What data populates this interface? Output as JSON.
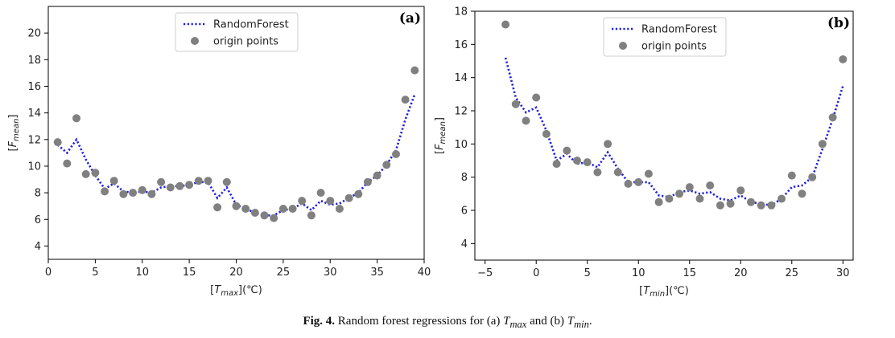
{
  "chart_data": [
    {
      "type": "scatter",
      "panel_tag": "(a)",
      "xlabel_var": "T",
      "xlabel_sub": "max",
      "xlabel_unit": "(℃)",
      "ylabel_var": "F",
      "ylabel_sub": "mean",
      "xlim": [
        0,
        40
      ],
      "ylim": [
        3,
        22
      ],
      "xticks": [
        0,
        5,
        10,
        15,
        20,
        25,
        30,
        35,
        40
      ],
      "yticks": [
        4,
        6,
        8,
        10,
        12,
        14,
        16,
        18,
        20
      ],
      "grid": false,
      "legend_placement": "top-center",
      "series": [
        {
          "name": "RandomForest",
          "style": "dotted-line",
          "color": "#1f1fe0",
          "x": [
            1,
            2,
            3,
            4,
            5,
            6,
            7,
            8,
            9,
            10,
            11,
            12,
            13,
            14,
            15,
            16,
            17,
            18,
            19,
            20,
            21,
            22,
            23,
            24,
            25,
            26,
            27,
            28,
            29,
            30,
            31,
            32,
            33,
            34,
            35,
            36,
            37,
            38,
            39
          ],
          "y": [
            11.6,
            11.0,
            12.0,
            10.5,
            9.3,
            8.3,
            8.7,
            8.1,
            8.0,
            8.1,
            8.0,
            8.4,
            8.5,
            8.5,
            8.6,
            8.8,
            8.8,
            7.6,
            8.4,
            7.1,
            6.8,
            6.5,
            6.3,
            6.3,
            6.7,
            6.8,
            7.2,
            6.7,
            7.4,
            7.1,
            7.2,
            7.6,
            8.0,
            8.8,
            9.3,
            10.1,
            11.2,
            13.5,
            15.4
          ]
        },
        {
          "name": "origin points",
          "style": "markers",
          "color": "#808080",
          "x": [
            1,
            2,
            3,
            4,
            5,
            6,
            7,
            8,
            9,
            10,
            11,
            12,
            13,
            14,
            15,
            16,
            17,
            18,
            19,
            20,
            21,
            22,
            23,
            24,
            25,
            26,
            27,
            28,
            29,
            30,
            31,
            32,
            33,
            34,
            35,
            36,
            37,
            38,
            39
          ],
          "y": [
            11.8,
            10.2,
            13.6,
            9.4,
            9.5,
            8.1,
            8.9,
            7.9,
            8.0,
            8.2,
            7.9,
            8.8,
            8.4,
            8.5,
            8.6,
            8.9,
            8.9,
            6.9,
            8.8,
            7.0,
            6.8,
            6.5,
            6.3,
            6.1,
            6.8,
            6.8,
            7.4,
            6.3,
            8.0,
            7.4,
            6.8,
            7.6,
            7.9,
            8.8,
            9.3,
            10.1,
            10.9,
            15.0,
            17.2
          ]
        }
      ]
    },
    {
      "type": "scatter",
      "panel_tag": "(b)",
      "xlabel_var": "T",
      "xlabel_sub": "min",
      "xlabel_unit": "(℃)",
      "ylabel_var": "F",
      "ylabel_sub": "mean",
      "xlim": [
        -6,
        31
      ],
      "ylim": [
        3,
        18
      ],
      "xticks": [
        -5,
        0,
        5,
        10,
        15,
        20,
        25,
        30
      ],
      "yticks": [
        4,
        6,
        8,
        10,
        12,
        14,
        16,
        18
      ],
      "grid": false,
      "legend_placement": "top-center",
      "series": [
        {
          "name": "RandomForest",
          "style": "dotted-line",
          "color": "#1f1fe0",
          "x": [
            -3,
            -2,
            -1,
            0,
            1,
            2,
            3,
            4,
            5,
            6,
            7,
            8,
            9,
            10,
            11,
            12,
            13,
            14,
            15,
            16,
            17,
            18,
            19,
            20,
            21,
            22,
            23,
            24,
            25,
            26,
            27,
            28,
            29,
            30
          ],
          "y": [
            15.2,
            12.8,
            11.9,
            12.2,
            10.8,
            9.0,
            9.4,
            8.8,
            8.9,
            8.6,
            9.5,
            8.5,
            7.7,
            7.7,
            7.7,
            6.9,
            6.8,
            7.1,
            7.2,
            7.0,
            7.1,
            6.7,
            6.6,
            6.9,
            6.5,
            6.4,
            6.3,
            6.7,
            7.4,
            7.5,
            8.0,
            9.7,
            11.5,
            13.5
          ]
        },
        {
          "name": "origin points",
          "style": "markers",
          "color": "#808080",
          "x": [
            -3,
            -2,
            -1,
            0,
            1,
            2,
            3,
            4,
            5,
            6,
            7,
            8,
            9,
            10,
            11,
            12,
            13,
            14,
            15,
            16,
            17,
            18,
            19,
            20,
            21,
            22,
            23,
            24,
            25,
            26,
            27,
            28,
            29,
            30
          ],
          "y": [
            17.2,
            12.4,
            11.4,
            12.8,
            10.6,
            8.8,
            9.6,
            9.0,
            8.9,
            8.3,
            10.0,
            8.3,
            7.6,
            7.7,
            8.2,
            6.5,
            6.7,
            7.0,
            7.4,
            6.7,
            7.5,
            6.3,
            6.4,
            7.2,
            6.5,
            6.3,
            6.3,
            6.7,
            8.1,
            7.0,
            8.0,
            10.0,
            11.6,
            15.1
          ]
        }
      ]
    }
  ],
  "caption": {
    "label": "Fig. 4.",
    "text_1": "Random forest regressions for (a) ",
    "var_1": "T",
    "sub_1": "max",
    "text_2": " and (b) ",
    "var_2": "T",
    "sub_2": "min",
    "text_3": "."
  }
}
